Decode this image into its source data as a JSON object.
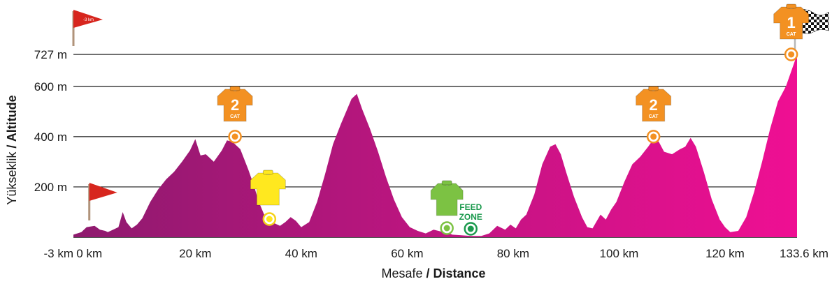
{
  "colors": {
    "profile_start": "#8e1a6e",
    "profile_end": "#ef0f93",
    "grid": "#1a1a1a",
    "baseline": "#1a1a1a",
    "flag": "#d7261e",
    "flag_pole": "#b0937a",
    "kom_jersey": "#f39122",
    "sprint_jersey": "#ffe81f",
    "points_jersey": "#7cc243",
    "feed_zone": "#1c9a4e"
  },
  "icons": {
    "start_flag": "red-pennant-flag-icon",
    "neutral_flag": "red-pennant-flag-icon",
    "finish_flag": "checkered-flag-icon",
    "kom": "orange-jersey-icon",
    "sprint": "yellow-jersey-icon",
    "points": "green-jersey-icon"
  },
  "chart_data": {
    "type": "area",
    "xlabel_tr": "Mesafe",
    "xlabel_en": "/ Distance",
    "ylabel_tr": "Yükseklik",
    "ylabel_en": "/ Altitude",
    "x_ticks": [
      "-3 km",
      "0 km",
      "20 km",
      "40 km",
      "60 km",
      "80 km",
      "100 km",
      "120 km",
      "133.6 km"
    ],
    "x_tick_values": [
      -3,
      0,
      20,
      40,
      60,
      80,
      100,
      120,
      133.6
    ],
    "y_ticks": [
      "200 m",
      "400 m",
      "600 m",
      "727 m"
    ],
    "y_tick_values": [
      200,
      400,
      600,
      727
    ],
    "xlim": [
      -3,
      133.6
    ],
    "ylim": [
      0,
      727
    ],
    "grid": true,
    "series": [
      {
        "x": [
          -3,
          -1.5,
          -0.5,
          1,
          2,
          3,
          3.5,
          4.5,
          5.5,
          6.3,
          7,
          8,
          9,
          10,
          11.5,
          13,
          14.5,
          16,
          17.5,
          19,
          20,
          21,
          22,
          23.5,
          25,
          26,
          27,
          28.5,
          30,
          31,
          32,
          33,
          34,
          35,
          36,
          37,
          38,
          39,
          40,
          41.5,
          43,
          44.5,
          46,
          47.5,
          48.5,
          49.5,
          50.5,
          51.5,
          53,
          54.5,
          56,
          57.5,
          59,
          60.5,
          62,
          63.5,
          65,
          66.5,
          67.5,
          68.5,
          70,
          72,
          74,
          75.5,
          77,
          78.5,
          79.5,
          80.5,
          81.5,
          82.5,
          84,
          85.5,
          87,
          88,
          89,
          90,
          91.5,
          93,
          94,
          95,
          96.5,
          97.5,
          98.5,
          99.5,
          101,
          102.5,
          104,
          105.5,
          106.5,
          107.5,
          108.5,
          110,
          111.5,
          112.5,
          113.5,
          114.5,
          116,
          117.5,
          119,
          120,
          121,
          122.5,
          124,
          125.5,
          127,
          128.5,
          130,
          131.5,
          133,
          133.6
        ],
        "y": [
          10,
          20,
          40,
          45,
          30,
          25,
          20,
          30,
          40,
          100,
          60,
          35,
          50,
          75,
          140,
          190,
          230,
          260,
          300,
          345,
          390,
          325,
          330,
          300,
          345,
          385,
          380,
          350,
          270,
          210,
          140,
          90,
          70,
          55,
          45,
          60,
          80,
          65,
          40,
          60,
          140,
          250,
          370,
          450,
          500,
          550,
          570,
          510,
          430,
          340,
          240,
          150,
          80,
          40,
          25,
          15,
          30,
          22,
          20,
          10,
          8,
          5,
          5,
          15,
          45,
          30,
          50,
          35,
          70,
          90,
          170,
          290,
          360,
          370,
          330,
          260,
          160,
          80,
          40,
          35,
          90,
          70,
          110,
          140,
          220,
          290,
          320,
          360,
          390,
          380,
          340,
          330,
          350,
          360,
          395,
          360,
          260,
          150,
          70,
          40,
          20,
          25,
          80,
          180,
          300,
          430,
          540,
          600,
          690,
          727
        ]
      }
    ],
    "markers": [
      {
        "type": "kom",
        "category": "2",
        "label": "CAT",
        "x": 27.5,
        "y": 400
      },
      {
        "type": "sprint",
        "x": 34,
        "y": 30
      },
      {
        "type": "points",
        "x": 67.5,
        "y": 15
      },
      {
        "type": "feed_zone",
        "label_line1": "FEED",
        "label_line2": "ZONE",
        "x": 72,
        "y": 15
      },
      {
        "type": "kom",
        "category": "2",
        "label": "CAT",
        "x": 106.5,
        "y": 400
      },
      {
        "type": "kom",
        "category": "1",
        "label": "CAT",
        "x": 132.5,
        "y": 727
      }
    ],
    "flags": [
      {
        "type": "neutral",
        "text": "-3 km",
        "x": -3
      },
      {
        "type": "start",
        "text": "",
        "x": 0
      },
      {
        "type": "finish",
        "text": "",
        "x": 133.6
      }
    ]
  }
}
